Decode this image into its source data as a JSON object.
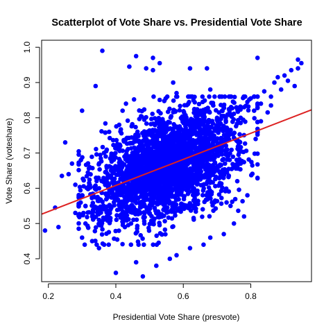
{
  "chart_data": {
    "type": "scatter",
    "title": "Scatterplot of Vote Share vs. Presidential Vote Share",
    "xlabel": "Presidential Vote Share (presvote)",
    "ylabel": "Vote Share (voteshare)",
    "xlim": [
      0.18,
      0.98
    ],
    "ylim": [
      0.335,
      1.02
    ],
    "x_ticks": [
      "0.2",
      "0.4",
      "0.6",
      "0.8"
    ],
    "y_ticks": [
      "0.4",
      "0.5",
      "0.6",
      "0.7",
      "0.8",
      "0.9",
      "1.0"
    ],
    "x_tick_values": [
      0.2,
      0.4,
      0.6,
      0.8
    ],
    "y_tick_values": [
      0.4,
      0.5,
      0.6,
      0.7,
      0.8,
      0.9,
      1.0
    ],
    "grid": false,
    "legend": "none",
    "point_color": "#0000ff",
    "line_color": "#dd2222",
    "fit_line": {
      "intercept": 0.46,
      "slope": 0.37
    },
    "points": [
      [
        0.36,
        0.99
      ],
      [
        0.46,
        0.975
      ],
      [
        0.51,
        0.97
      ],
      [
        0.53,
        0.955
      ],
      [
        0.44,
        0.945
      ],
      [
        0.49,
        0.94
      ],
      [
        0.51,
        0.935
      ],
      [
        0.62,
        0.94
      ],
      [
        0.67,
        0.94
      ],
      [
        0.82,
        0.97
      ],
      [
        0.94,
        0.965
      ],
      [
        0.95,
        0.955
      ],
      [
        0.94,
        0.94
      ],
      [
        0.92,
        0.935
      ],
      [
        0.9,
        0.92
      ],
      [
        0.88,
        0.915
      ],
      [
        0.91,
        0.905
      ],
      [
        0.87,
        0.9
      ],
      [
        0.93,
        0.89
      ],
      [
        0.89,
        0.88
      ],
      [
        0.84,
        0.875
      ],
      [
        0.86,
        0.86
      ],
      [
        0.82,
        0.86
      ],
      [
        0.8,
        0.855
      ],
      [
        0.79,
        0.845
      ],
      [
        0.83,
        0.84
      ],
      [
        0.86,
        0.835
      ],
      [
        0.78,
        0.83
      ],
      [
        0.76,
        0.825
      ],
      [
        0.81,
        0.82
      ],
      [
        0.85,
        0.815
      ],
      [
        0.74,
        0.81
      ],
      [
        0.72,
        0.805
      ],
      [
        0.77,
        0.8
      ],
      [
        0.7,
        0.8
      ],
      [
        0.83,
        0.79
      ],
      [
        0.34,
        0.89
      ],
      [
        0.3,
        0.82
      ],
      [
        0.25,
        0.73
      ],
      [
        0.24,
        0.635
      ],
      [
        0.22,
        0.545
      ],
      [
        0.19,
        0.48
      ],
      [
        0.23,
        0.49
      ],
      [
        0.28,
        0.53
      ],
      [
        0.3,
        0.46
      ],
      [
        0.33,
        0.45
      ],
      [
        0.35,
        0.43
      ],
      [
        0.4,
        0.36
      ],
      [
        0.46,
        0.39
      ],
      [
        0.48,
        0.35
      ],
      [
        0.52,
        0.38
      ],
      [
        0.56,
        0.4
      ],
      [
        0.58,
        0.41
      ],
      [
        0.62,
        0.43
      ],
      [
        0.66,
        0.44
      ],
      [
        0.68,
        0.46
      ],
      [
        0.72,
        0.47
      ],
      [
        0.75,
        0.5
      ],
      [
        0.78,
        0.52
      ],
      [
        0.74,
        0.55
      ],
      [
        0.79,
        0.58
      ],
      [
        0.76,
        0.62
      ],
      [
        0.77,
        0.67
      ],
      [
        0.68,
        0.88
      ],
      [
        0.72,
        0.83
      ],
      [
        0.57,
        0.9
      ],
      [
        0.58,
        0.87
      ],
      [
        0.63,
        0.85
      ],
      [
        0.41,
        0.78
      ],
      [
        0.38,
        0.76
      ],
      [
        0.42,
        0.82
      ],
      [
        0.43,
        0.84
      ],
      [
        0.27,
        0.67
      ],
      [
        0.26,
        0.64
      ],
      [
        0.28,
        0.61
      ],
      [
        0.3,
        0.58
      ],
      [
        0.31,
        0.55
      ],
      [
        0.31,
        0.5
      ],
      [
        0.33,
        0.52
      ],
      [
        0.35,
        0.57
      ]
    ]
  }
}
